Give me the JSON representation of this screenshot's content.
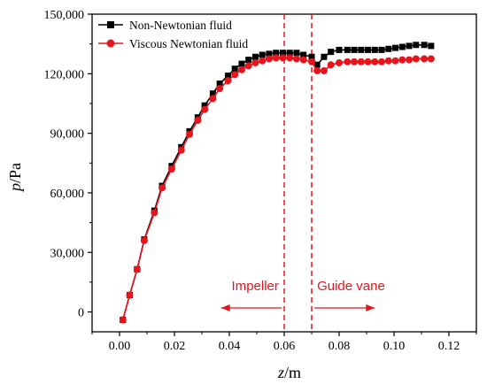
{
  "chart_data": {
    "type": "line",
    "xlabel_var": "z",
    "xlabel_unit": "/m",
    "ylabel_var": "p",
    "ylabel_unit": "/Pa",
    "xlim": [
      -0.01,
      0.13
    ],
    "ylim": [
      -10000,
      150000
    ],
    "x_ticks": [
      0.0,
      0.02,
      0.04,
      0.06,
      0.08,
      0.1,
      0.12
    ],
    "x_tick_labels": [
      "0.00",
      "0.02",
      "0.04",
      "0.06",
      "0.08",
      "0.10",
      "0.12"
    ],
    "y_ticks": [
      0,
      30000,
      60000,
      90000,
      120000,
      150000
    ],
    "y_tick_labels": [
      "0",
      "30,000",
      "60,000",
      "90,000",
      "120,000",
      "150,000"
    ],
    "grid": false,
    "legend_position": "top-left",
    "series": [
      {
        "name": "Non-Newtonian fluid",
        "color": "#000000",
        "marker": "square",
        "x": [
          0.0012,
          0.0037,
          0.0064,
          0.009,
          0.0127,
          0.0155,
          0.019,
          0.0225,
          0.0255,
          0.0285,
          0.031,
          0.034,
          0.0365,
          0.0395,
          0.042,
          0.0445,
          0.047,
          0.0495,
          0.052,
          0.0545,
          0.057,
          0.0595,
          0.062,
          0.0645,
          0.067,
          0.07,
          0.072,
          0.0745,
          0.077,
          0.08,
          0.083,
          0.0855,
          0.088,
          0.0905,
          0.093,
          0.0955,
          0.098,
          0.1005,
          0.103,
          0.1055,
          0.108,
          0.111,
          0.1135
        ],
        "y": [
          -4000,
          8500,
          21500,
          36500,
          51000,
          63500,
          73500,
          83000,
          91000,
          98000,
          104000,
          110000,
          115000,
          119000,
          122500,
          125000,
          127000,
          128500,
          129500,
          130000,
          130500,
          130500,
          130500,
          130500,
          129500,
          128500,
          124500,
          128500,
          131000,
          132000,
          132000,
          132000,
          132000,
          132000,
          132000,
          132000,
          132500,
          133000,
          133500,
          134000,
          134500,
          134500,
          134000
        ]
      },
      {
        "name": "Viscous Newtonian fluid",
        "color": "#e8141c",
        "marker": "circle",
        "x": [
          0.0012,
          0.0037,
          0.0064,
          0.009,
          0.0127,
          0.0155,
          0.019,
          0.0225,
          0.0255,
          0.0285,
          0.031,
          0.034,
          0.0365,
          0.0395,
          0.042,
          0.0445,
          0.047,
          0.0495,
          0.052,
          0.0545,
          0.057,
          0.0595,
          0.062,
          0.0645,
          0.067,
          0.07,
          0.072,
          0.0745,
          0.077,
          0.08,
          0.083,
          0.0855,
          0.088,
          0.0905,
          0.093,
          0.0955,
          0.098,
          0.1005,
          0.103,
          0.1055,
          0.108,
          0.111,
          0.1135
        ],
        "y": [
          -4000,
          8500,
          21500,
          36000,
          50000,
          62500,
          72000,
          81500,
          89500,
          96500,
          102000,
          107500,
          112500,
          116500,
          119500,
          122000,
          124000,
          125500,
          126500,
          127500,
          128000,
          128000,
          128000,
          127500,
          127000,
          126000,
          121500,
          121500,
          124500,
          125500,
          126000,
          126000,
          126000,
          126000,
          126000,
          126000,
          126500,
          126500,
          127000,
          127000,
          127500,
          127500,
          127500
        ]
      }
    ],
    "vlines": [
      0.06,
      0.07
    ],
    "annotations": [
      {
        "text": "Impeller",
        "direction": "left",
        "x_start": 0.059,
        "x_end": 0.037,
        "y": 0
      },
      {
        "text": "Guide vane",
        "direction": "right",
        "x_start": 0.071,
        "x_end": 0.093,
        "y": 0
      }
    ],
    "annotation_color": "#e8141c"
  }
}
